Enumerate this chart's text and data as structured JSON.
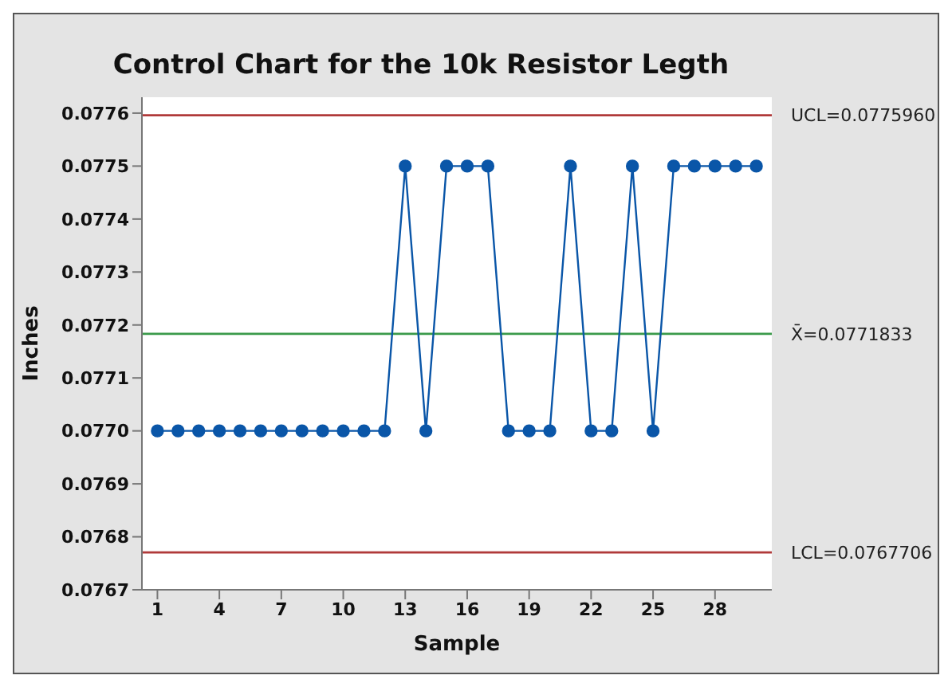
{
  "chart_data": {
    "type": "line",
    "title": "Control Chart for the 10k Resistor Legth",
    "xlabel": "Sample",
    "ylabel": "Inches",
    "x": [
      1,
      2,
      3,
      4,
      5,
      6,
      7,
      8,
      9,
      10,
      11,
      12,
      13,
      14,
      15,
      16,
      17,
      18,
      19,
      20,
      21,
      22,
      23,
      24,
      25,
      26,
      27,
      28,
      29,
      30
    ],
    "series": [
      {
        "color": "#0a56a8",
        "values": [
          0.077,
          0.077,
          0.077,
          0.077,
          0.077,
          0.077,
          0.077,
          0.077,
          0.077,
          0.077,
          0.077,
          0.077,
          0.0775,
          0.077,
          0.0775,
          0.0775,
          0.0775,
          0.077,
          0.077,
          0.077,
          0.0775,
          0.077,
          0.077,
          0.0775,
          0.077,
          0.0775,
          0.0775,
          0.0775,
          0.0775,
          0.0775
        ]
      }
    ],
    "xlim": [
      0.25,
      30.75
    ],
    "xticks": [
      1,
      4,
      7,
      10,
      13,
      16,
      19,
      22,
      25,
      28
    ],
    "ylim": [
      0.0767,
      0.07763
    ],
    "yticks": [
      0.0767,
      0.0768,
      0.0769,
      {
        "value": 0.077,
        "label": "0.0770"
      },
      0.0771,
      0.0772,
      0.0773,
      0.0774,
      0.0775,
      0.0776
    ],
    "ref_lines": [
      {
        "axis": "y",
        "value": 0.077596,
        "label": "UCL=0.0775960",
        "color": "#b03a3a"
      },
      {
        "axis": "y",
        "value": 0.0771833,
        "label": "X̄=0.0771833",
        "color": "#3a9a4a"
      },
      {
        "axis": "y",
        "value": 0.0767706,
        "label": "LCL=0.0767706",
        "color": "#b03a3a"
      }
    ],
    "marker": "circle",
    "line_style": "solid",
    "grid": false,
    "legend": false
  }
}
